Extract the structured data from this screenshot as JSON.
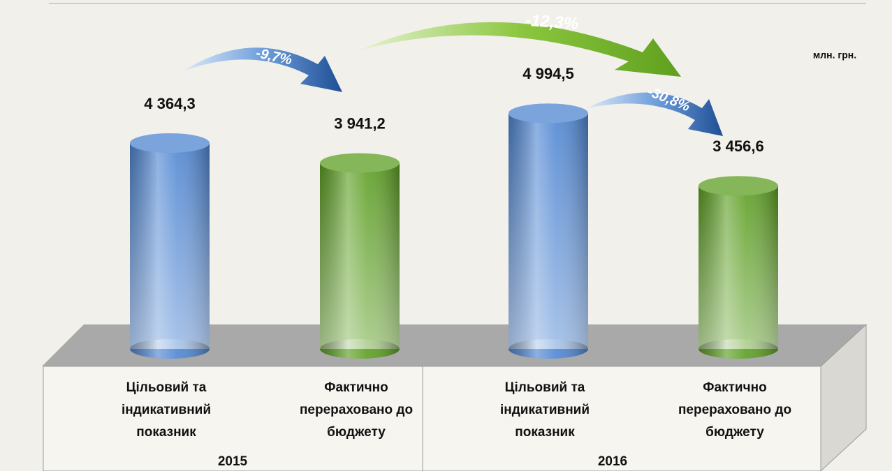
{
  "chart_data": {
    "type": "bar",
    "unit_label": "млн. грн.",
    "categories": [
      [
        "Цільовий та",
        "індикативний",
        "показник"
      ],
      [
        "Фактично",
        "перераховано до",
        "бюджету"
      ],
      [
        "Цільовий та",
        "індикативний",
        "показник"
      ],
      [
        "Фактично",
        "перераховано до",
        "бюджету"
      ]
    ],
    "groups": [
      "2015",
      "2016"
    ],
    "values": [
      4364.3,
      3941.2,
      4994.5,
      3456.6
    ],
    "value_labels": [
      "4 364,3",
      "3 941,2",
      "4 994,5",
      "3 456,6"
    ],
    "colors": [
      "#4f86d2",
      "#5c9e22",
      "#4f86d2",
      "#5c9e22"
    ],
    "annotations": [
      "-9,7%",
      "-12,3%",
      "-30,8%"
    ]
  }
}
